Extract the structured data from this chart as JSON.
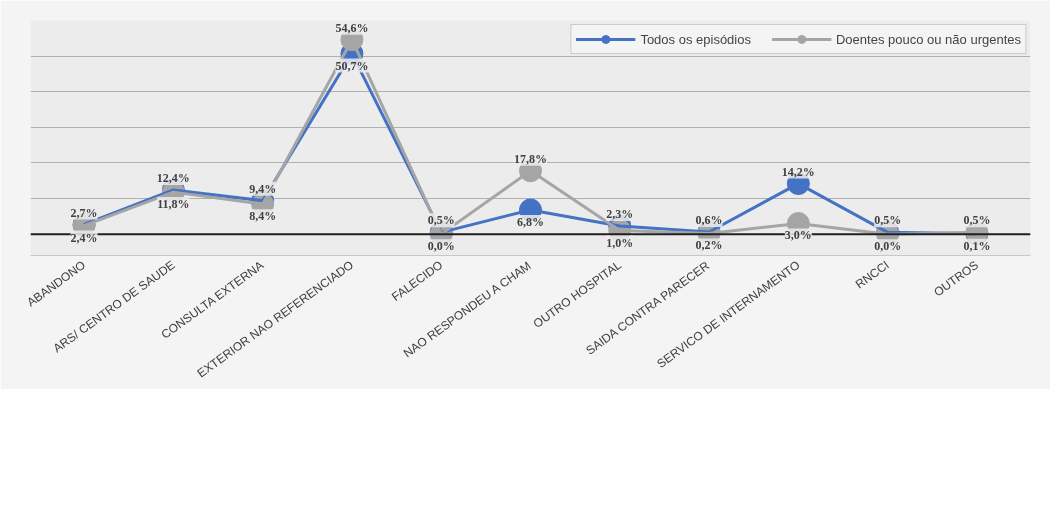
{
  "chart_data": {
    "type": "line",
    "categories": [
      "ABANDONO",
      "ARS/ CENTRO DE SAUDE",
      "CONSULTA EXTERNA",
      "EXTERIOR NAO REFERENCIADO",
      "FALECIDO",
      "NAO RESPONDEU A CHAM",
      "OUTRO HOSPITAL",
      "SAIDA CONTRA PARECER",
      "SERVICO DE INTERNAMENTO",
      "RNCCI",
      "OUTROS"
    ],
    "series": [
      {
        "name": "Todos os episódios",
        "color": "#4472c4",
        "values": [
          2.7,
          12.4,
          9.4,
          50.7,
          0.5,
          6.8,
          2.3,
          0.6,
          14.2,
          0.5,
          0.1
        ],
        "value_labels": [
          "2,7%",
          "12,4%",
          "9,4%",
          "50,7%",
          "0,5%",
          "6,8%",
          "2,3%",
          "0,6%",
          "14,2%",
          "0,5%",
          "0,1%"
        ]
      },
      {
        "name": "Doentes pouco ou não urgentes",
        "color": "#a5a5a5",
        "values": [
          2.4,
          11.8,
          8.4,
          54.6,
          0.0,
          17.8,
          1.0,
          0.2,
          3.0,
          0.0,
          0.5
        ],
        "value_labels": [
          "2,4%",
          "11,8%",
          "8,4%",
          "54,6%",
          "0,0%",
          "17,8%",
          "1,0%",
          "0,2%",
          "3,0%",
          "0,0%",
          "0,5%"
        ]
      }
    ],
    "ylim": [
      -6,
      60
    ],
    "yticks": [
      {
        "value": 0,
        "label": null
      },
      {
        "value": 10,
        "label": null
      },
      {
        "value": 20,
        "label": null
      },
      {
        "value": 30,
        "label": null
      },
      {
        "value": 40,
        "label": null
      },
      {
        "value": 50,
        "label": null
      },
      {
        "value": 60,
        "label": null
      }
    ],
    "tick_labels": "x",
    "ref_lines": [
      {
        "axis": "y",
        "value": 0,
        "color": "#202020"
      }
    ],
    "grid": "y",
    "legend": "top right",
    "marker": "circle",
    "line_style": "solid"
  }
}
